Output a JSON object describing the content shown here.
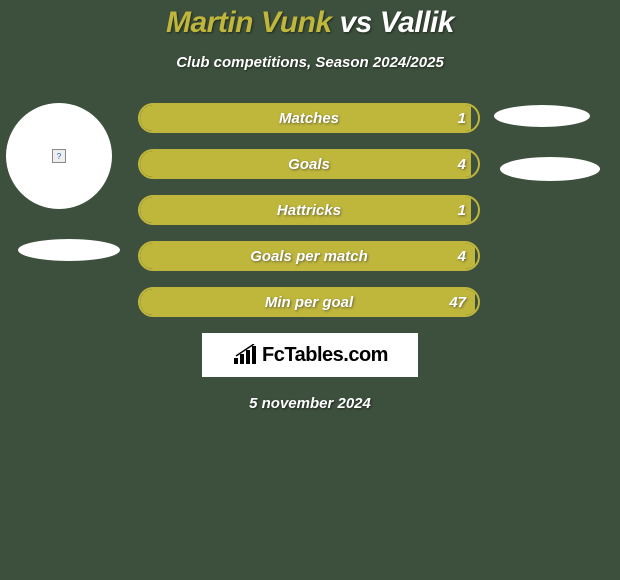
{
  "background_color": "#3d4f3d",
  "title": {
    "player1": "Martin Vunk",
    "vs": "vs",
    "player2": "Vallik",
    "player1_color": "#bfb63c",
    "vs_color": "#ffffff",
    "player2_color": "#ffffff"
  },
  "subtitle": "Club competitions, Season 2024/2025",
  "accent_color": "#bfb63c",
  "bars": [
    {
      "label": "Matches",
      "value": "1",
      "fill_pct": 98
    },
    {
      "label": "Goals",
      "value": "4",
      "fill_pct": 98
    },
    {
      "label": "Hattricks",
      "value": "1",
      "fill_pct": 98
    },
    {
      "label": "Goals per match",
      "value": "4",
      "fill_pct": 99
    },
    {
      "label": "Min per goal",
      "value": "47",
      "fill_pct": 99
    }
  ],
  "left_avatar": {
    "placeholder_icon": "?"
  },
  "logo": {
    "text": "FcTables.com",
    "icon": "chart-bars-icon"
  },
  "date": "5 november 2024"
}
